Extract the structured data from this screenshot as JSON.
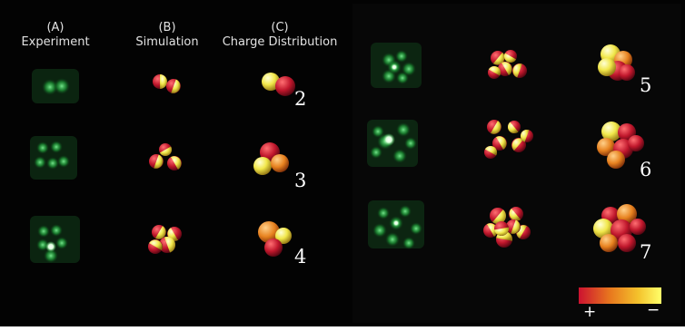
{
  "headers": {
    "a_letter": "(A)",
    "a_name": "Experiment",
    "b_letter": "(B)",
    "b_name": "Simulation",
    "c_letter": "(C)",
    "c_name": "Charge Distribution"
  },
  "rows": [
    {
      "n": "2"
    },
    {
      "n": "3"
    },
    {
      "n": "4"
    },
    {
      "n": "5"
    },
    {
      "n": "6"
    },
    {
      "n": "7"
    }
  ],
  "colorbar": {
    "plus": "+",
    "minus": "−",
    "stops": [
      "#cc1230",
      "#e8781e",
      "#f4c22c",
      "#ffff6a"
    ]
  },
  "colors": {
    "background": "#030303",
    "glow": "#33c24a",
    "glow_core": "#eaffea",
    "red": "#c0172c",
    "yellow": "#f1e74a",
    "orange": "#e7821f"
  }
}
